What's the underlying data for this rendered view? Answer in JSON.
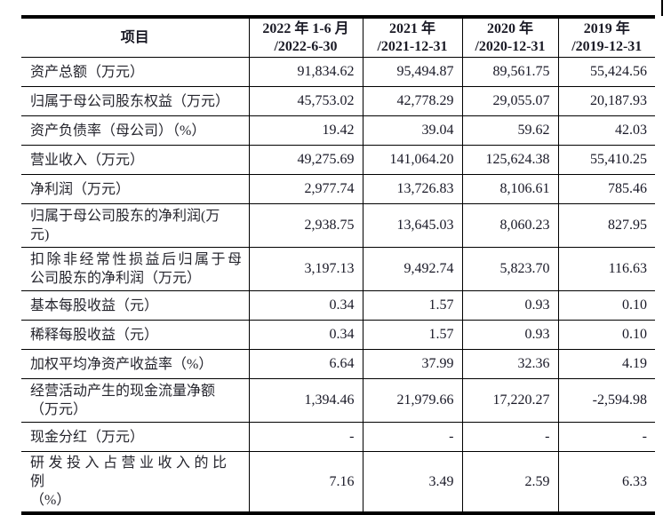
{
  "colors": {
    "background": "#ffffff",
    "border": "#000000",
    "text": "#1b1b26"
  },
  "table": {
    "corner_header": "项目",
    "column_headers": [
      "2022 年 1-6 月\n/2022-6-30",
      "2021 年\n/2021-12-31",
      "2020 年\n/2020-12-31",
      "2019 年\n/2019-12-31"
    ],
    "rows": [
      {
        "label": "资产总额（万元）",
        "values": [
          "91,834.62",
          "95,494.87",
          "89,561.75",
          "55,424.56"
        ]
      },
      {
        "label": "归属于母公司股东权益（万元）",
        "values": [
          "45,753.02",
          "42,778.29",
          "29,055.07",
          "20,187.93"
        ]
      },
      {
        "label": "资产负债率（母公司）（%）",
        "values": [
          "19.42",
          "39.04",
          "59.62",
          "42.03"
        ]
      },
      {
        "label": "营业收入（万元）",
        "values": [
          "49,275.69",
          "141,064.20",
          "125,624.38",
          "55,410.25"
        ]
      },
      {
        "label": "净利润（万元）",
        "values": [
          "2,977.74",
          "13,726.83",
          "8,106.61",
          "785.46"
        ]
      },
      {
        "label": "归属于母公司股东的净利润(万\n元)",
        "values": [
          "2,938.75",
          "13,645.03",
          "8,060.23",
          "827.95"
        ]
      },
      {
        "label": "扣除非经常性损益后归属于母\n公司股东的净利润（万元）",
        "values": [
          "3,197.13",
          "9,492.74",
          "5,823.70",
          "116.63"
        ]
      },
      {
        "label": "基本每股收益（元）",
        "values": [
          "0.34",
          "1.57",
          "0.93",
          "0.10"
        ]
      },
      {
        "label": "稀释每股收益（元）",
        "values": [
          "0.34",
          "1.57",
          "0.93",
          "0.10"
        ]
      },
      {
        "label": "加权平均净资产收益率（%）",
        "values": [
          "6.64",
          "37.99",
          "32.36",
          "4.19"
        ]
      },
      {
        "label": "经营活动产生的现金流量净额\n（万元）",
        "values": [
          "1,394.46",
          "21,979.66",
          "17,220.27",
          "-2,594.98"
        ]
      },
      {
        "label": "现金分红（万元）",
        "values": [
          "-",
          "-",
          "-",
          "-"
        ]
      },
      {
        "label": "研发投入占营业收入的比例\n（%）",
        "values": [
          "7.16",
          "3.49",
          "2.59",
          "6.33"
        ]
      }
    ]
  }
}
